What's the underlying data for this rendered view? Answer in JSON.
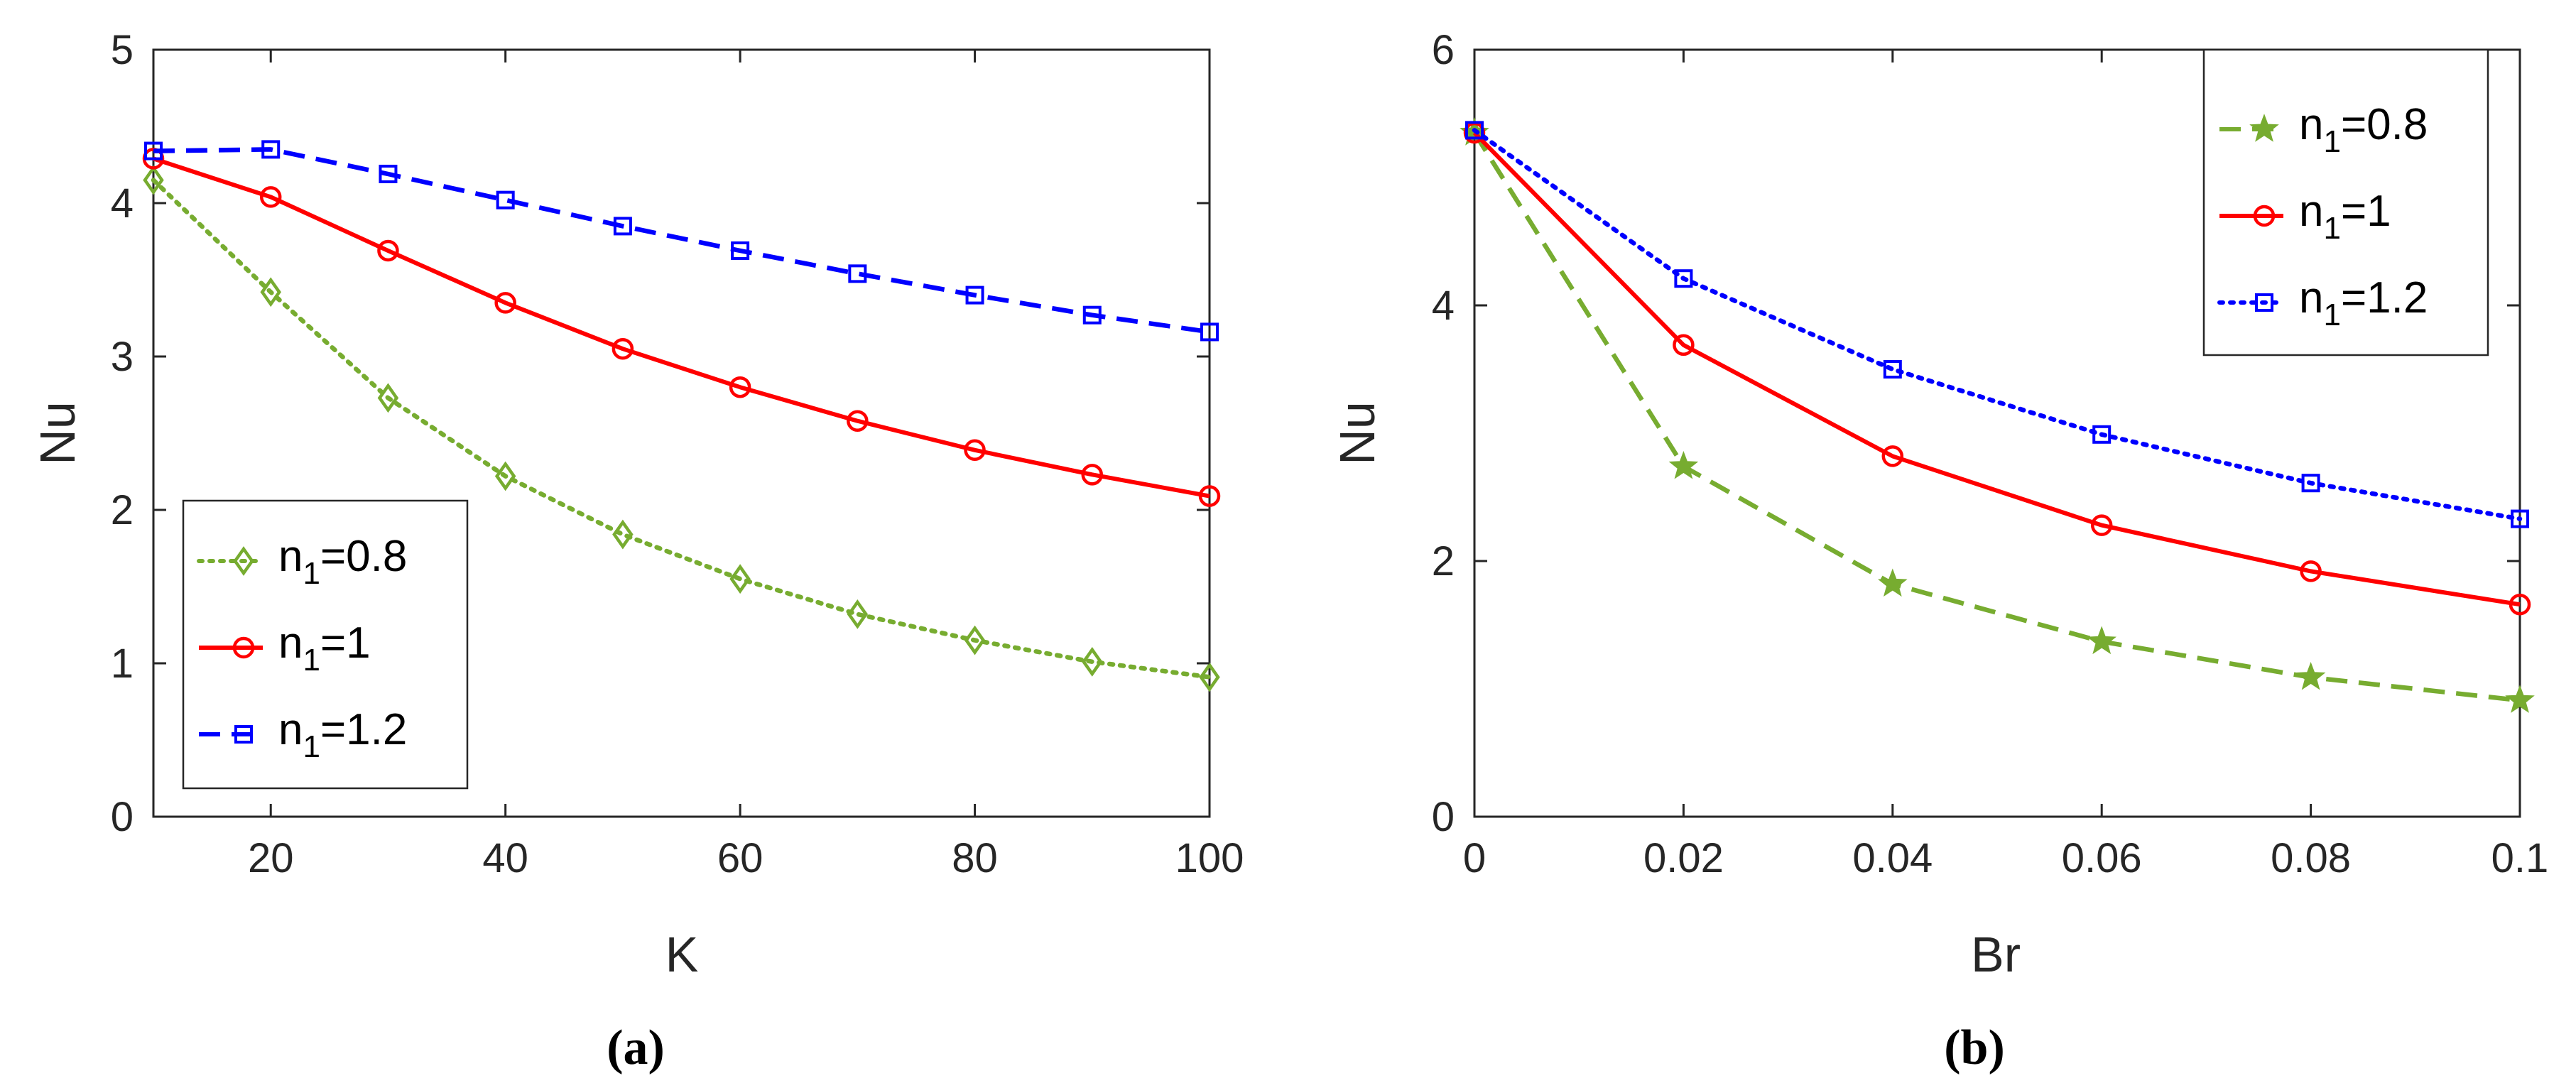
{
  "chart_data": [
    {
      "type": "line",
      "panel": "(a)",
      "xlabel": "K",
      "ylabel": "Nu",
      "xlim": [
        10,
        100
      ],
      "ylim": [
        0,
        5
      ],
      "xticks": [
        20,
        40,
        60,
        80,
        100
      ],
      "xtick_labels": [
        "20",
        "40",
        "60",
        "80",
        "100"
      ],
      "yticks": [
        0,
        1,
        2,
        3,
        4,
        5
      ],
      "ytick_labels": [
        "0",
        "1",
        "2",
        "3",
        "4",
        "5"
      ],
      "legend_position": "bottom-left",
      "x": [
        10,
        20,
        30,
        40,
        50,
        60,
        70,
        80,
        90,
        100
      ],
      "series": [
        {
          "name": "n1=0.8",
          "label_base": "n",
          "label_sub": "1",
          "label_value": "=0.8",
          "color": "#77ac30",
          "dash": "dotted",
          "marker": "diamond",
          "values": [
            4.15,
            3.42,
            2.73,
            2.22,
            1.84,
            1.55,
            1.32,
            1.15,
            1.01,
            0.91
          ]
        },
        {
          "name": "n1=1",
          "label_base": "n",
          "label_sub": "1",
          "label_value": "=1",
          "color": "#ff0000",
          "dash": "solid",
          "marker": "circle",
          "values": [
            4.29,
            4.04,
            3.69,
            3.35,
            3.05,
            2.8,
            2.58,
            2.39,
            2.23,
            2.09
          ]
        },
        {
          "name": "n1=1.2",
          "label_base": "n",
          "label_sub": "1",
          "label_value": "=1.2",
          "color": "#0000ff",
          "dash": "dashed",
          "marker": "square",
          "values": [
            4.34,
            4.35,
            4.19,
            4.02,
            3.85,
            3.69,
            3.54,
            3.4,
            3.27,
            3.16
          ]
        }
      ]
    },
    {
      "type": "line",
      "panel": "(b)",
      "xlabel": "Br",
      "ylabel": "Nu",
      "xlim": [
        0,
        0.1
      ],
      "ylim": [
        0,
        6
      ],
      "xticks": [
        0,
        0.02,
        0.04,
        0.06,
        0.08,
        0.1
      ],
      "xtick_labels": [
        "0",
        "0.02",
        "0.04",
        "0.06",
        "0.08",
        "0.1"
      ],
      "yticks": [
        0,
        2,
        4,
        6
      ],
      "ytick_labels": [
        "0",
        "2",
        "4",
        "6"
      ],
      "legend_position": "top-right",
      "x": [
        0,
        0.02,
        0.04,
        0.06,
        0.08,
        0.1
      ],
      "series": [
        {
          "name": "n1=0.8",
          "label_base": "n",
          "label_sub": "1",
          "label_value": "=0.8",
          "color": "#77ac30",
          "dash": "dashed",
          "marker": "star",
          "values": [
            5.35,
            2.74,
            1.82,
            1.37,
            1.09,
            0.91
          ]
        },
        {
          "name": "n1=1",
          "label_base": "n",
          "label_sub": "1",
          "label_value": "=1",
          "color": "#ff0000",
          "dash": "solid",
          "marker": "circle",
          "values": [
            5.35,
            3.69,
            2.82,
            2.28,
            1.92,
            1.66
          ]
        },
        {
          "name": "n1=1.2",
          "label_base": "n",
          "label_sub": "1",
          "label_value": "=1.2",
          "color": "#0000ff",
          "dash": "dotted",
          "marker": "square",
          "values": [
            5.37,
            4.21,
            3.5,
            2.99,
            2.61,
            2.33
          ]
        }
      ]
    }
  ]
}
